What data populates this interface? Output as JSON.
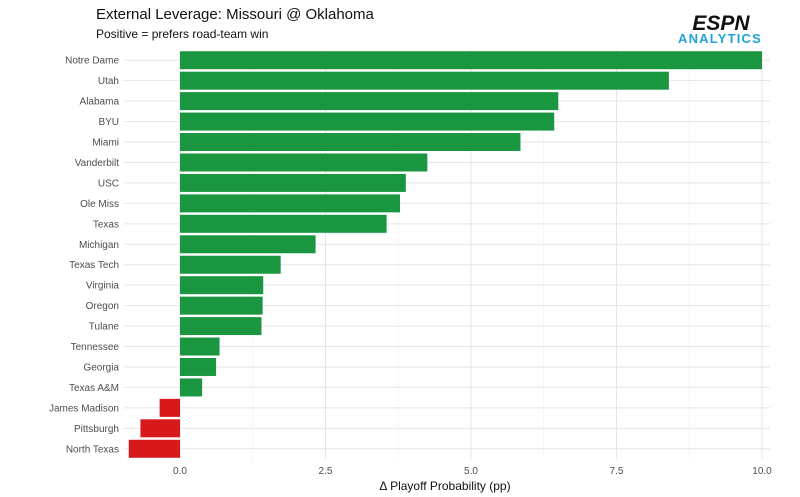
{
  "logo": {
    "brand": "ESPN",
    "sub": "ANALYTICS",
    "sub_color": "#1ea3d8"
  },
  "colors": {
    "positive": "#1a9641",
    "negative": "#d7191c",
    "grid": "#e5e5e5"
  },
  "chart_data": {
    "type": "bar",
    "orientation": "horizontal",
    "title": "External Leverage: Missouri @ Oklahoma",
    "subtitle": "Positive = prefers road-team win",
    "xlabel": "Δ Playoff Probability (pp)",
    "ylabel": "",
    "xlim": [
      -0.9,
      10.0
    ],
    "xticks": [
      0.0,
      2.5,
      5.0,
      7.5,
      10.0
    ],
    "xtick_labels": [
      "0.0",
      "2.5",
      "5.0",
      "7.5",
      "10.0"
    ],
    "grid": true,
    "categories": [
      "Notre Dame",
      "Utah",
      "Alabama",
      "BYU",
      "Miami",
      "Vanderbilt",
      "USC",
      "Ole Miss",
      "Texas",
      "Michigan",
      "Texas Tech",
      "Virginia",
      "Oregon",
      "Tulane",
      "Tennessee",
      "Georgia",
      "Texas A&M",
      "James Madison",
      "Pittsburgh",
      "North Texas"
    ],
    "values": [
      10.0,
      8.4,
      6.5,
      6.43,
      5.85,
      4.25,
      3.88,
      3.78,
      3.55,
      2.33,
      1.73,
      1.43,
      1.42,
      1.4,
      0.68,
      0.62,
      0.38,
      -0.35,
      -0.68,
      -0.88
    ]
  }
}
